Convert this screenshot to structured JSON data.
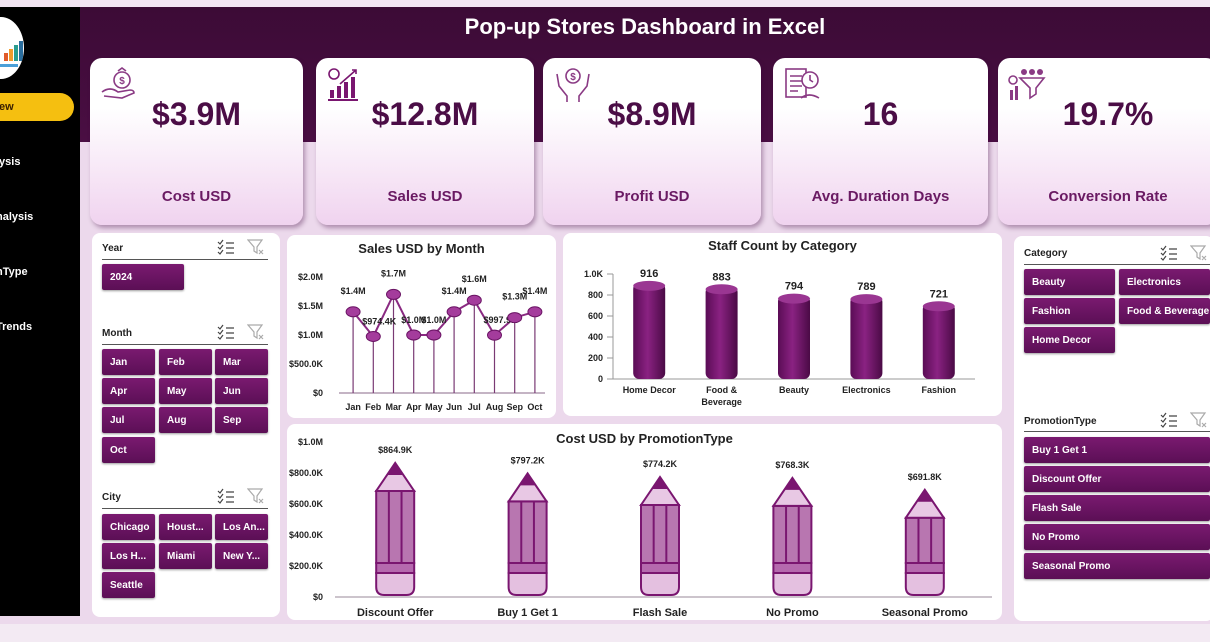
{
  "header": {
    "title": "Pop-up Stores Dashboard in Excel"
  },
  "sidebar": {
    "items": [
      {
        "label": "iew",
        "active": true
      },
      {
        "label": "lysis"
      },
      {
        "label": "nalysis"
      },
      {
        "label": "nType"
      },
      {
        "label": "Trends"
      }
    ]
  },
  "kpis": [
    {
      "value": "$3.9M",
      "label": "Cost USD",
      "icon": "money-bag-hand-icon"
    },
    {
      "value": "$12.8M",
      "label": "Sales USD",
      "icon": "growth-chart-icon"
    },
    {
      "value": "$8.9M",
      "label": "Profit USD",
      "icon": "hands-dollar-icon"
    },
    {
      "value": "16",
      "label": "Avg. Duration Days",
      "icon": "document-clock-icon"
    },
    {
      "value": "19.7%",
      "label": "Conversion Rate",
      "icon": "funnel-people-icon"
    }
  ],
  "slicers": {
    "year": {
      "title": "Year",
      "items": [
        "2024"
      ]
    },
    "month": {
      "title": "Month",
      "items": [
        "Jan",
        "Feb",
        "Mar",
        "Apr",
        "May",
        "Jun",
        "Jul",
        "Aug",
        "Sep",
        "Oct"
      ]
    },
    "city": {
      "title": "City",
      "items": [
        "Chicago",
        "Houst...",
        "Los An...",
        "Los H...",
        "Miami",
        "New Y...",
        "Seattle"
      ]
    },
    "category": {
      "title": "Category",
      "items": [
        "Beauty",
        "Electronics",
        "Fashion",
        "Food & Beverage",
        "Home Decor"
      ]
    },
    "promotion": {
      "title": "PromotionType",
      "items": [
        "Buy 1 Get 1",
        "Discount Offer",
        "Flash Sale",
        "No Promo",
        "Seasonal Promo"
      ]
    }
  },
  "colors": {
    "primary": "#6a1464",
    "header": "#3c0b36",
    "accent": "#f5bf10"
  },
  "chart_data": [
    {
      "type": "line",
      "title": "Sales USD by Month",
      "categories": [
        "Jan",
        "Feb",
        "Mar",
        "Apr",
        "May",
        "Jun",
        "Jul",
        "Aug",
        "Sep",
        "Oct"
      ],
      "values": [
        1400000,
        974400,
        1700000,
        1000000,
        1000000,
        1400000,
        1600000,
        997900,
        1300000,
        1400000
      ],
      "labels": [
        "$1.4M",
        "$974.4K",
        "$1.7M",
        "$1.0M",
        "$1.0M",
        "$1.4M",
        "$1.6M",
        "$997.9K",
        "$1.3M",
        "$1.4M"
      ],
      "yticks": [
        "$0",
        "$500.0K",
        "$1.0M",
        "$1.5M",
        "$2.0M"
      ],
      "ylim": [
        0,
        2000000
      ]
    },
    {
      "type": "bar",
      "title": "Staff Count by Category",
      "categories": [
        "Home Decor",
        "Food & Beverage",
        "Beauty",
        "Electronics",
        "Fashion"
      ],
      "values": [
        916,
        883,
        794,
        789,
        721
      ],
      "labels": [
        "916",
        "883",
        "794",
        "789",
        "721"
      ],
      "yticks": [
        "0",
        "200",
        "400",
        "600",
        "800",
        "1.0K"
      ],
      "ylim": [
        0,
        1000
      ]
    },
    {
      "type": "bar",
      "title": "Cost USD by PromotionType",
      "categories": [
        "Discount Offer",
        "Buy 1 Get 1",
        "Flash Sale",
        "No Promo",
        "Seasonal Promo"
      ],
      "values": [
        864900,
        797200,
        774200,
        768300,
        691800
      ],
      "labels": [
        "$864.9K",
        "$797.2K",
        "$774.2K",
        "$768.3K",
        "$691.8K"
      ],
      "yticks": [
        "$0",
        "$200.0K",
        "$400.0K",
        "$600.0K",
        "$800.0K",
        "$1.0M"
      ],
      "ylim": [
        0,
        1000000
      ]
    }
  ]
}
